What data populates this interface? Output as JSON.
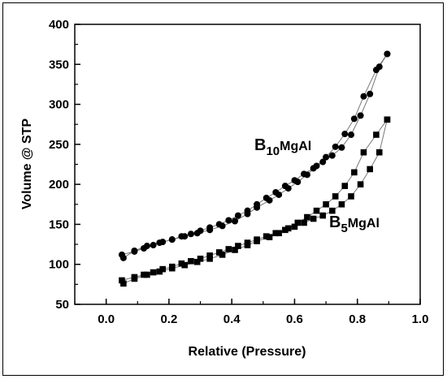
{
  "chart_data": {
    "type": "scatter",
    "xlabel": "Relative (Pressure)",
    "ylabel": "Volume @ STP",
    "xlim": [
      -0.1,
      1.0
    ],
    "ylim": [
      50,
      400
    ],
    "xticks": [
      "0.0",
      "0.2",
      "0.4",
      "0.6",
      "0.8",
      "1.0"
    ],
    "yticks": [
      "50",
      "100",
      "150",
      "200",
      "250",
      "300",
      "350",
      "400"
    ],
    "grid": false,
    "series": [
      {
        "name": "B10MgAl",
        "label_main": "B",
        "label_sub": "10",
        "label_rest": "MgAl",
        "marker": "circle",
        "color": "#000000",
        "adsorption": {
          "x": [
            0.055,
            0.09,
            0.13,
            0.17,
            0.21,
            0.25,
            0.29,
            0.33,
            0.37,
            0.41,
            0.45,
            0.48,
            0.52,
            0.55,
            0.58,
            0.61,
            0.64,
            0.67,
            0.7,
            0.73,
            0.76,
            0.79,
            0.82,
            0.86,
            0.895
          ],
          "y": [
            108,
            117,
            123,
            127,
            131,
            135,
            139,
            143,
            148,
            154,
            163,
            171,
            180,
            187,
            195,
            203,
            212,
            223,
            234,
            247,
            263,
            282,
            310,
            343,
            363
          ]
        },
        "desorption": {
          "x": [
            0.895,
            0.87,
            0.84,
            0.81,
            0.78,
            0.75,
            0.72,
            0.69,
            0.66,
            0.63,
            0.6,
            0.57,
            0.54,
            0.51,
            0.48,
            0.45,
            0.42,
            0.39,
            0.36,
            0.33,
            0.3,
            0.27,
            0.24,
            0.21,
            0.18,
            0.15,
            0.12,
            0.09,
            0.05
          ],
          "y": [
            363,
            347,
            313,
            286,
            262,
            246,
            236,
            228,
            220,
            213,
            205,
            198,
            190,
            183,
            175,
            167,
            161,
            155,
            150,
            146,
            142,
            138,
            135,
            131,
            128,
            124,
            120,
            116,
            112
          ]
        }
      },
      {
        "name": "B5MgAl",
        "label_main": "B",
        "label_sub": "5",
        "label_rest": "MgAl",
        "marker": "square",
        "color": "#000000",
        "adsorption": {
          "x": [
            0.055,
            0.09,
            0.13,
            0.17,
            0.21,
            0.25,
            0.29,
            0.33,
            0.37,
            0.41,
            0.45,
            0.48,
            0.52,
            0.55,
            0.58,
            0.61,
            0.64,
            0.67,
            0.7,
            0.73,
            0.76,
            0.79,
            0.82,
            0.86,
            0.895
          ],
          "y": [
            76,
            82,
            87,
            91,
            95,
            99,
            103,
            107,
            112,
            118,
            124,
            129,
            134,
            139,
            145,
            152,
            159,
            167,
            175,
            185,
            198,
            215,
            240,
            262,
            281
          ]
        },
        "desorption": {
          "x": [
            0.895,
            0.87,
            0.84,
            0.81,
            0.78,
            0.75,
            0.72,
            0.69,
            0.66,
            0.63,
            0.6,
            0.57,
            0.54,
            0.51,
            0.48,
            0.45,
            0.42,
            0.39,
            0.36,
            0.33,
            0.3,
            0.27,
            0.24,
            0.21,
            0.18,
            0.15,
            0.12,
            0.09,
            0.05
          ],
          "y": [
            281,
            240,
            219,
            200,
            185,
            175,
            167,
            161,
            157,
            152,
            147,
            143,
            139,
            135,
            131,
            127,
            123,
            119,
            115,
            111,
            107,
            104,
            101,
            97,
            94,
            90,
            87,
            84,
            80
          ]
        }
      }
    ]
  }
}
